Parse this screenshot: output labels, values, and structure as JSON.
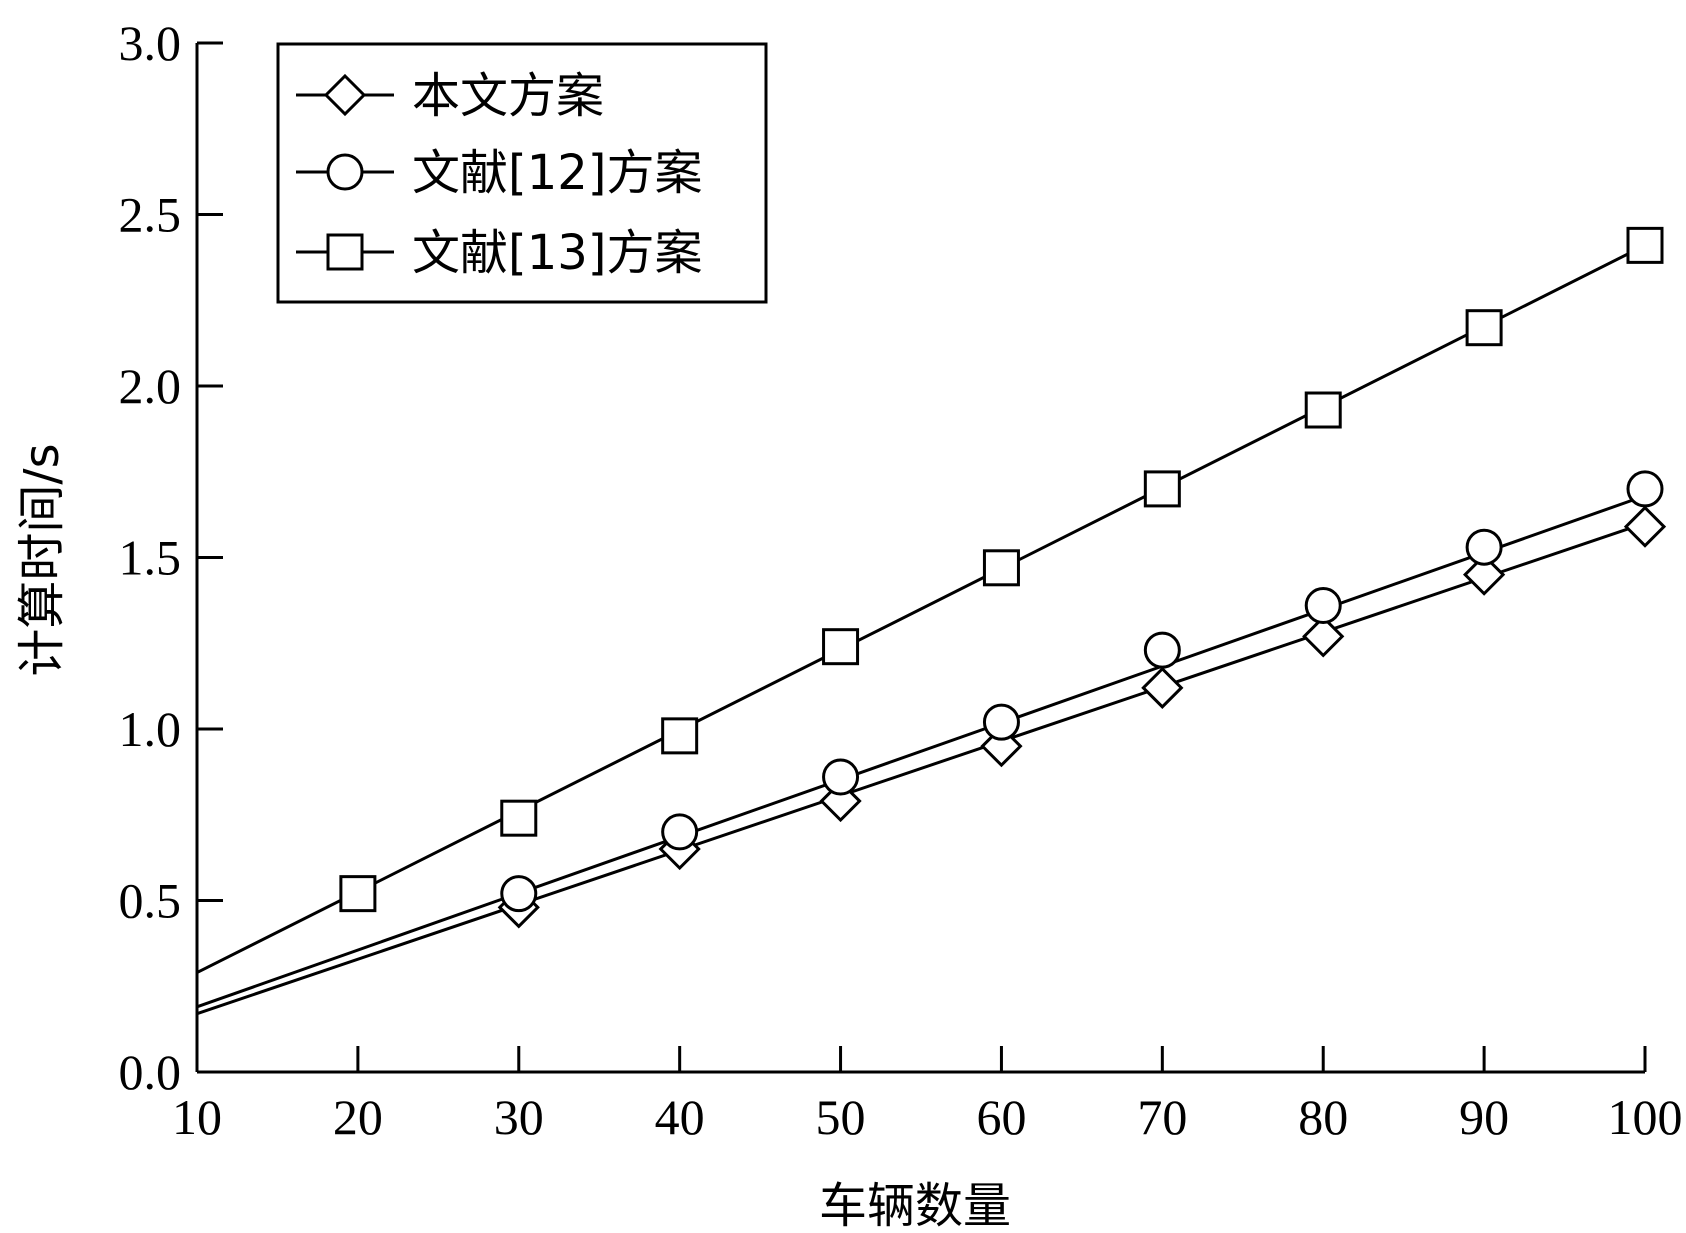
{
  "chart_data": {
    "type": "line",
    "xlabel": "车辆数量",
    "ylabel": "计算时间/s",
    "xlim": [
      10,
      100
    ],
    "ylim": [
      0,
      3.0
    ],
    "x_ticks": [
      "10",
      "20",
      "30",
      "40",
      "50",
      "60",
      "70",
      "80",
      "90",
      "100"
    ],
    "y_ticks": [
      "0.0",
      "0.5",
      "1.0",
      "1.5",
      "2.0",
      "2.5",
      "3.0"
    ],
    "grid": false,
    "legend_position": "top-left",
    "series": [
      {
        "name": "本文方案",
        "marker": "diamond",
        "line_x": [
          10,
          100
        ],
        "line_y": [
          0.17,
          1.6
        ],
        "marker_x": [
          30,
          40,
          50,
          60,
          70,
          80,
          90,
          100
        ],
        "marker_y": [
          0.48,
          0.65,
          0.79,
          0.95,
          1.12,
          1.27,
          1.45,
          1.59
        ]
      },
      {
        "name": "文献[12]方案",
        "marker": "circle",
        "line_x": [
          10,
          100
        ],
        "line_y": [
          0.19,
          1.68
        ],
        "marker_x": [
          30,
          40,
          50,
          60,
          70,
          80,
          90,
          100
        ],
        "marker_y": [
          0.52,
          0.7,
          0.86,
          1.02,
          1.23,
          1.36,
          1.53,
          1.7
        ]
      },
      {
        "name": "文献[13]方案",
        "marker": "square",
        "line_x": [
          10,
          100
        ],
        "line_y": [
          0.29,
          2.41
        ],
        "marker_x": [
          20,
          30,
          40,
          50,
          60,
          70,
          80,
          90,
          100
        ],
        "marker_y": [
          0.52,
          0.74,
          0.98,
          1.24,
          1.47,
          1.7,
          1.93,
          2.17,
          2.41
        ]
      }
    ]
  }
}
